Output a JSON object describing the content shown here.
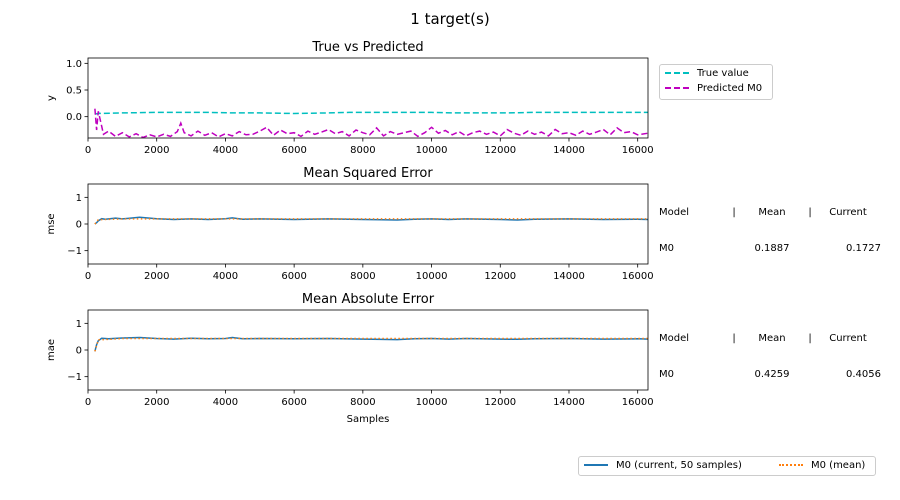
{
  "figure": {
    "suptitle": "1 target(s)"
  },
  "chart_data": [
    {
      "type": "line",
      "title": "True vs Predicted",
      "xlabel": "",
      "ylabel": "y",
      "xlim": [
        0,
        16300
      ],
      "ylim": [
        -0.4,
        1.1
      ],
      "xticks": [
        0,
        2000,
        4000,
        6000,
        8000,
        10000,
        12000,
        14000,
        16000
      ],
      "yticks": [
        0.0,
        0.5,
        1.0
      ],
      "ytick_labels": [
        "0.0",
        "0.5",
        "1.0"
      ],
      "legend": "outside-right-top",
      "series": [
        {
          "name": "True value",
          "color": "#00bfbf",
          "style": "dashed",
          "x": [
            200,
            300,
            1000,
            2000,
            3000,
            3500,
            4200,
            5000,
            6000,
            7000,
            7600,
            8500,
            9400,
            10000,
            10600,
            11500,
            12200,
            13000,
            14000,
            15000,
            16300
          ],
          "values": [
            0.05,
            0.06,
            0.07,
            0.08,
            0.08,
            0.08,
            0.07,
            0.07,
            0.06,
            0.07,
            0.08,
            0.08,
            0.08,
            0.08,
            0.07,
            0.07,
            0.07,
            0.08,
            0.08,
            0.08,
            0.08
          ]
        },
        {
          "name": "Predicted M0",
          "color": "#bf00bf",
          "style": "dashed",
          "x": [
            200,
            250,
            300,
            450,
            600,
            800,
            1000,
            1200,
            1400,
            1600,
            1800,
            2000,
            2200,
            2400,
            2600,
            2700,
            2800,
            3000,
            3200,
            3400,
            3600,
            3800,
            4000,
            4200,
            4400,
            4600,
            4800,
            5000,
            5200,
            5400,
            5600,
            5800,
            6000,
            6200,
            6400,
            6600,
            6800,
            7000,
            7200,
            7400,
            7600,
            7800,
            8000,
            8200,
            8400,
            8600,
            8800,
            9000,
            9200,
            9400,
            9600,
            9800,
            10000,
            10200,
            10400,
            10600,
            10800,
            11000,
            11200,
            11400,
            11600,
            11800,
            12000,
            12200,
            12400,
            12600,
            12800,
            13000,
            13200,
            13400,
            13600,
            13800,
            14000,
            14200,
            14400,
            14600,
            14800,
            15000,
            15200,
            15400,
            15600,
            15800,
            16000,
            16300
          ],
          "values": [
            0.15,
            -0.25,
            0.1,
            -0.33,
            -0.27,
            -0.37,
            -0.3,
            -0.38,
            -0.32,
            -0.39,
            -0.34,
            -0.38,
            -0.33,
            -0.37,
            -0.28,
            -0.12,
            -0.3,
            -0.36,
            -0.27,
            -0.35,
            -0.3,
            -0.38,
            -0.32,
            -0.36,
            -0.28,
            -0.34,
            -0.33,
            -0.27,
            -0.2,
            -0.35,
            -0.25,
            -0.32,
            -0.3,
            -0.37,
            -0.27,
            -0.33,
            -0.29,
            -0.24,
            -0.32,
            -0.28,
            -0.36,
            -0.25,
            -0.3,
            -0.34,
            -0.21,
            -0.36,
            -0.28,
            -0.33,
            -0.3,
            -0.27,
            -0.37,
            -0.3,
            -0.2,
            -0.31,
            -0.26,
            -0.34,
            -0.28,
            -0.36,
            -0.3,
            -0.27,
            -0.33,
            -0.29,
            -0.36,
            -0.24,
            -0.31,
            -0.35,
            -0.27,
            -0.33,
            -0.29,
            -0.36,
            -0.24,
            -0.32,
            -0.3,
            -0.35,
            -0.27,
            -0.33,
            -0.29,
            -0.24,
            -0.34,
            -0.21,
            -0.3,
            -0.28,
            -0.34,
            -0.31
          ]
        }
      ]
    },
    {
      "type": "line",
      "title": "Mean Squared Error",
      "xlabel": "",
      "ylabel": "mse",
      "xlim": [
        0,
        16300
      ],
      "ylim": [
        -1.5,
        1.5
      ],
      "xticks": [
        0,
        2000,
        4000,
        6000,
        8000,
        10000,
        12000,
        14000,
        16000
      ],
      "yticks": [
        -1,
        0,
        1
      ],
      "ytick_labels": [
        "−1",
        "0",
        "1"
      ],
      "series": [
        {
          "name": "M0  (current, 50 samples)",
          "color": "#1f77b4",
          "style": "solid",
          "x": [
            200,
            250,
            300,
            400,
            500,
            800,
            1000,
            1500,
            2000,
            2500,
            3000,
            3500,
            4000,
            4200,
            4500,
            5000,
            6000,
            7000,
            8000,
            9000,
            9500,
            10000,
            10500,
            11000,
            12000,
            12500,
            13000,
            14000,
            15000,
            16000,
            16300
          ],
          "values": [
            0.0,
            0.05,
            0.12,
            0.2,
            0.18,
            0.22,
            0.19,
            0.25,
            0.2,
            0.17,
            0.19,
            0.17,
            0.2,
            0.23,
            0.18,
            0.19,
            0.17,
            0.19,
            0.17,
            0.15,
            0.18,
            0.19,
            0.17,
            0.19,
            0.17,
            0.15,
            0.18,
            0.19,
            0.17,
            0.18,
            0.17
          ]
        },
        {
          "name": "M0 (mean)",
          "color": "#ff7f0e",
          "style": "dotted",
          "x": [
            200,
            300,
            1000,
            4000,
            8000,
            12000,
            16300
          ],
          "values": [
            0.0,
            0.16,
            0.19,
            0.19,
            0.19,
            0.19,
            0.19
          ]
        }
      ]
    },
    {
      "type": "line",
      "title": "Mean Absolute Error",
      "xlabel": "Samples",
      "ylabel": "mae",
      "xlim": [
        0,
        16300
      ],
      "ylim": [
        -1.5,
        1.5
      ],
      "xticks": [
        0,
        2000,
        4000,
        6000,
        8000,
        10000,
        12000,
        14000,
        16000
      ],
      "yticks": [
        -1,
        0,
        1
      ],
      "ytick_labels": [
        "−1",
        "0",
        "1"
      ],
      "series": [
        {
          "name": "M0  (current, 50 samples)",
          "color": "#1f77b4",
          "style": "solid",
          "x": [
            200,
            250,
            300,
            400,
            600,
            1000,
            1500,
            2000,
            2500,
            3000,
            3500,
            4000,
            4200,
            4500,
            5000,
            6000,
            7000,
            8000,
            9000,
            9500,
            10000,
            10500,
            11000,
            12000,
            12500,
            13000,
            14000,
            15000,
            16000,
            16300
          ],
          "values": [
            -0.05,
            0.2,
            0.35,
            0.44,
            0.42,
            0.45,
            0.47,
            0.43,
            0.41,
            0.44,
            0.42,
            0.43,
            0.47,
            0.42,
            0.43,
            0.42,
            0.43,
            0.41,
            0.39,
            0.42,
            0.43,
            0.41,
            0.43,
            0.41,
            0.4,
            0.42,
            0.43,
            0.41,
            0.42,
            0.41
          ]
        },
        {
          "name": "M0 (mean)",
          "color": "#ff7f0e",
          "style": "dotted",
          "x": [
            200,
            300,
            1000,
            4000,
            8000,
            12000,
            16300
          ],
          "values": [
            -0.05,
            0.38,
            0.43,
            0.43,
            0.43,
            0.43,
            0.43
          ]
        }
      ]
    }
  ],
  "stats_tables": [
    {
      "header": [
        "Model",
        "|",
        "Mean",
        "|",
        "Current"
      ],
      "row": [
        "M0",
        "",
        "0.1887",
        "",
        "0.1727"
      ]
    },
    {
      "header": [
        "Model",
        "|",
        "Mean",
        "|",
        "Current"
      ],
      "row": [
        "M0",
        "",
        "0.4259",
        "",
        "0.4056"
      ]
    }
  ],
  "bottom_legend": [
    {
      "label": "M0  (current, 50 samples)",
      "color": "#1f77b4",
      "style": "solid"
    },
    {
      "label": "M0 (mean)",
      "color": "#ff7f0e",
      "style": "dotted"
    }
  ]
}
